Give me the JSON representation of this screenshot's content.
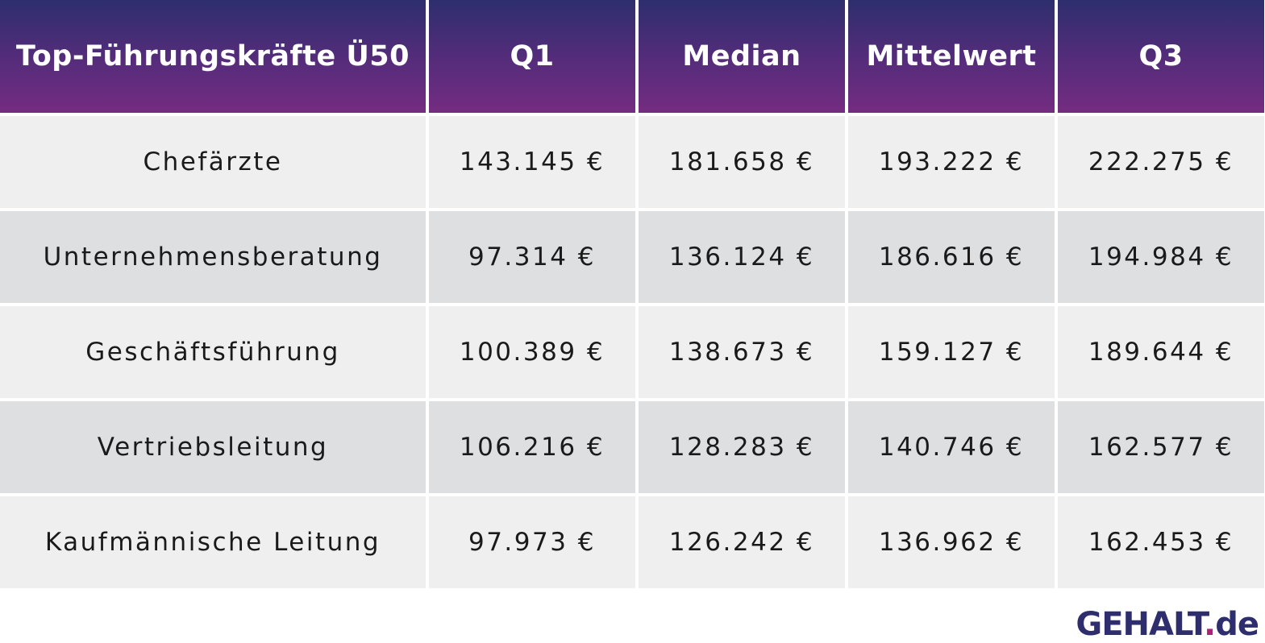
{
  "chart_data": {
    "type": "table",
    "columns": [
      "Top-Führungskräfte Ü50",
      "Q1",
      "Median",
      "Mittelwert",
      "Q3"
    ],
    "rows": [
      [
        "Chefärzte",
        "143.145 €",
        "181.658 €",
        "193.222 €",
        "222.275 €"
      ],
      [
        "Unternehmensberatung",
        "97.314 €",
        "136.124 €",
        "186.616 €",
        "194.984 €"
      ],
      [
        "Geschäftsführung",
        "100.389 €",
        "138.673 €",
        "159.127 €",
        "189.644 €"
      ],
      [
        "Vertriebsleitung",
        "106.216 €",
        "128.283 €",
        "140.746 €",
        "162.577 €"
      ],
      [
        "Kaufmännische Leitung",
        "97.973 €",
        "126.242 €",
        "136.962 €",
        "162.453 €"
      ]
    ]
  },
  "logo": {
    "name": "GEHALT",
    "dot": ".",
    "tld": "de"
  },
  "colors": {
    "header_top": "#2e2e6e",
    "header_bottom": "#742c80",
    "row_light": "#efefef",
    "row_dark": "#dedfe1",
    "logo_text": "#2e2e6e",
    "logo_dot": "#b0207a"
  }
}
